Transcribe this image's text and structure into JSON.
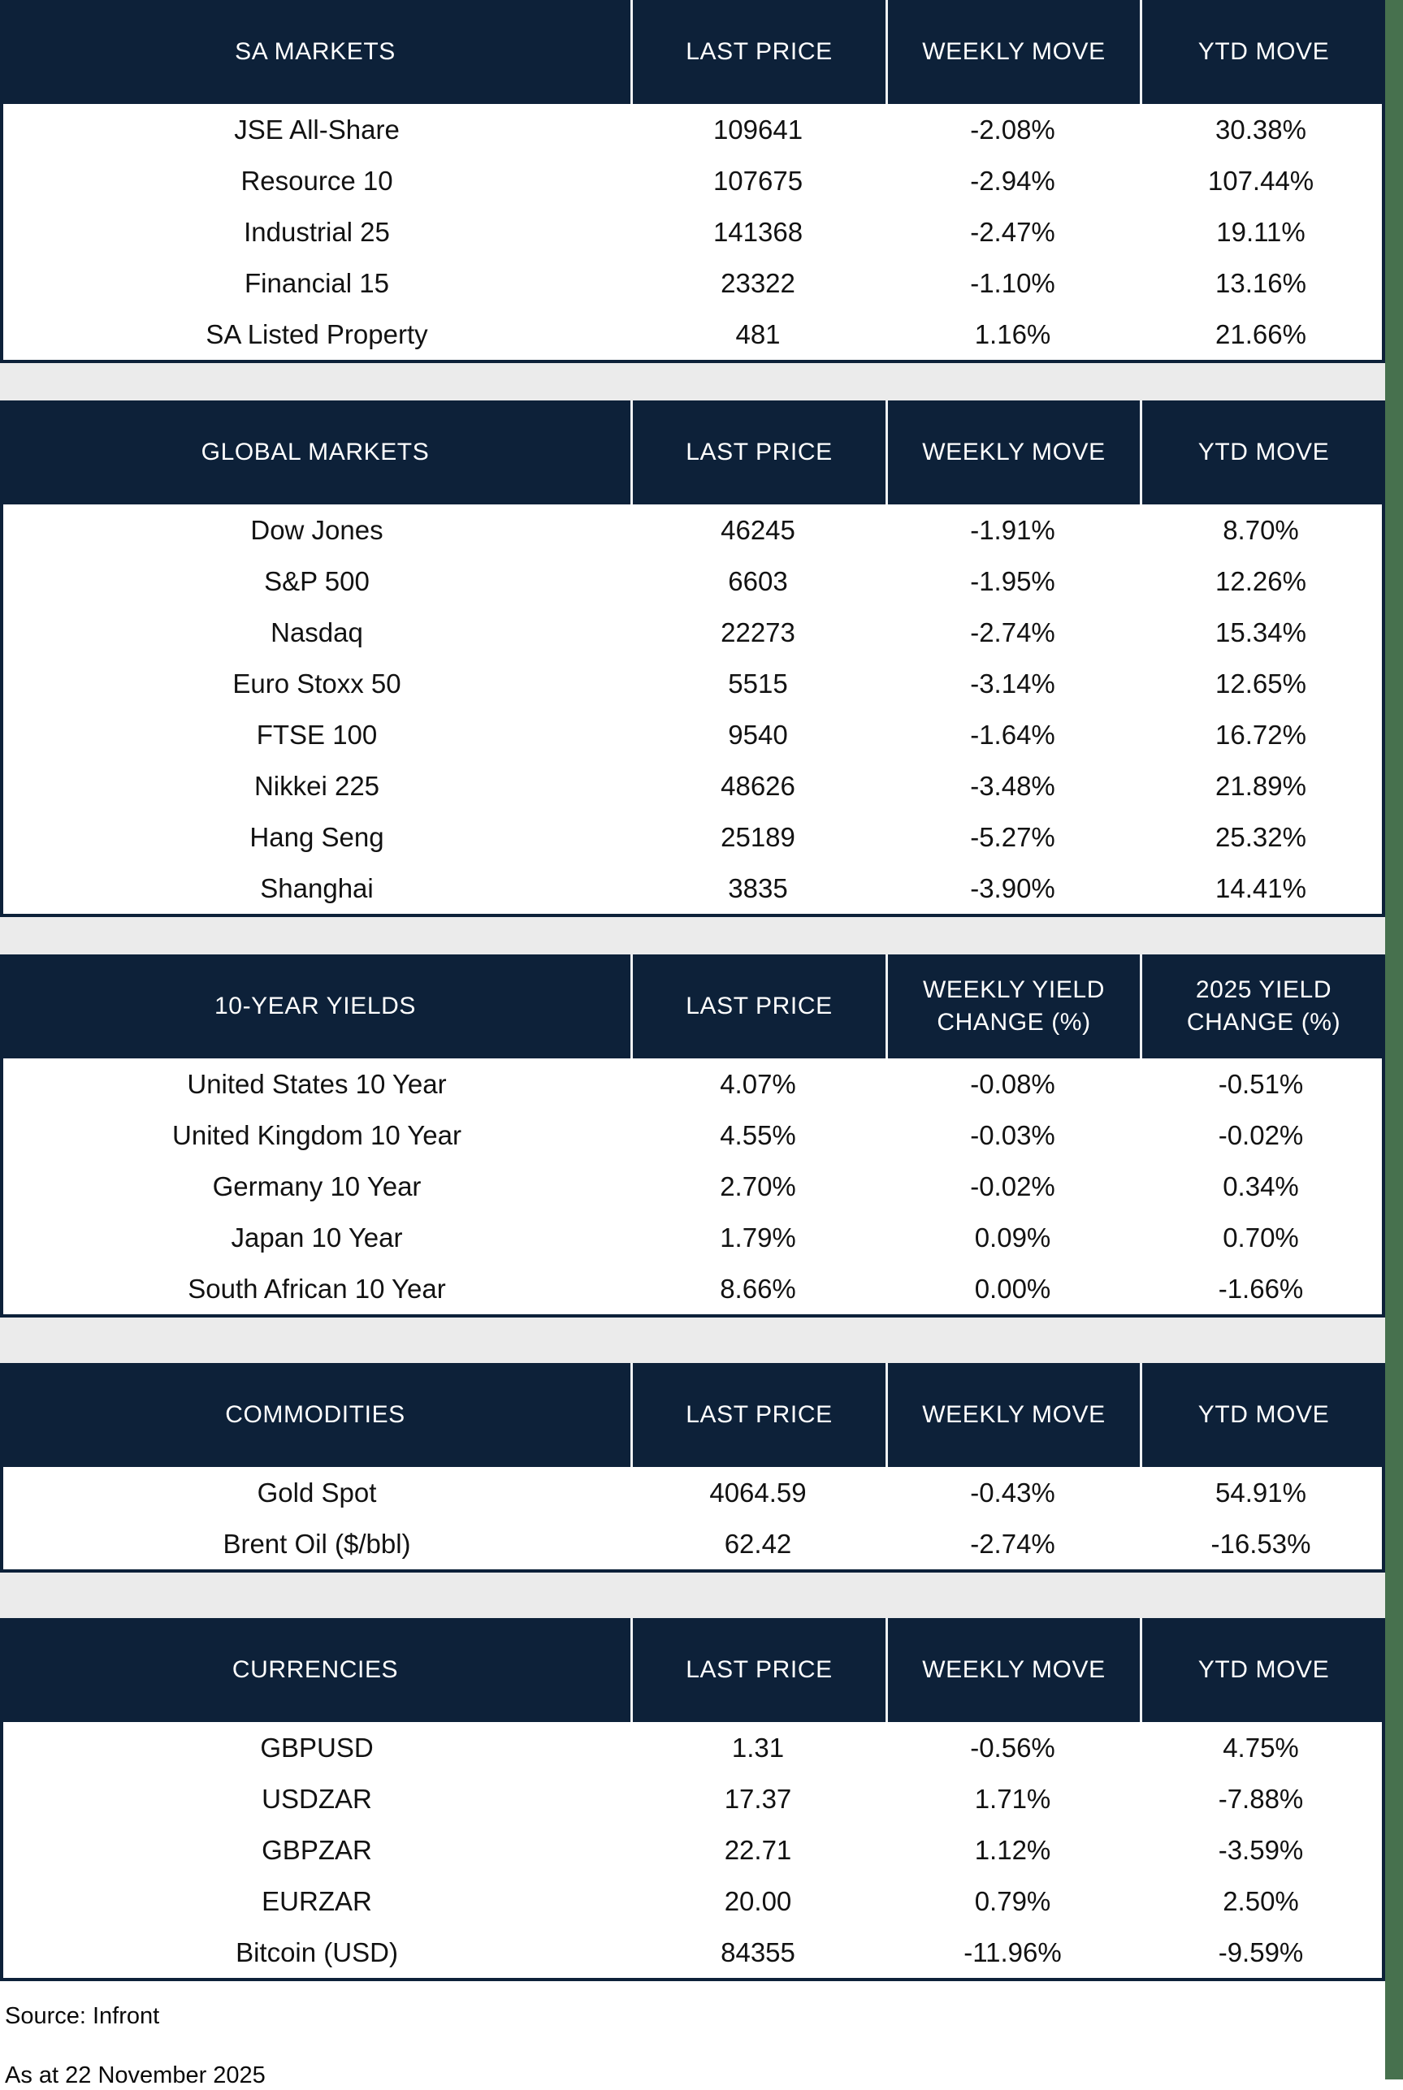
{
  "colors": {
    "navy": "#0d2139",
    "green": "#47714e",
    "gap_gray": "#ebebeb",
    "header_divider": "#eef1f4",
    "body_text": "#121212",
    "header_text": "#ffffff"
  },
  "tables": [
    {
      "title": "SA MARKETS",
      "columns": [
        "LAST PRICE",
        "WEEKLY MOVE",
        "YTD MOVE"
      ],
      "rows": [
        [
          "JSE All-Share",
          "109641",
          "-2.08%",
          "30.38%"
        ],
        [
          "Resource 10",
          "107675",
          "-2.94%",
          "107.44%"
        ],
        [
          "Industrial 25",
          "141368",
          "-2.47%",
          "19.11%"
        ],
        [
          "Financial 15",
          "23322",
          "-1.10%",
          "13.16%"
        ],
        [
          "SA Listed Property",
          "481",
          "1.16%",
          "21.66%"
        ]
      ]
    },
    {
      "title": "GLOBAL MARKETS",
      "columns": [
        "LAST PRICE",
        "WEEKLY MOVE",
        "YTD MOVE"
      ],
      "rows": [
        [
          "Dow Jones",
          "46245",
          "-1.91%",
          "8.70%"
        ],
        [
          "S&P 500",
          "6603",
          "-1.95%",
          "12.26%"
        ],
        [
          "Nasdaq",
          "22273",
          "-2.74%",
          "15.34%"
        ],
        [
          "Euro Stoxx 50",
          "5515",
          "-3.14%",
          "12.65%"
        ],
        [
          "FTSE 100",
          "9540",
          "-1.64%",
          "16.72%"
        ],
        [
          "Nikkei 225",
          "48626",
          "-3.48%",
          "21.89%"
        ],
        [
          "Hang Seng",
          "25189",
          "-5.27%",
          "25.32%"
        ],
        [
          "Shanghai",
          "3835",
          "-3.90%",
          "14.41%"
        ]
      ]
    },
    {
      "title": "10-YEAR YIELDS",
      "columns": [
        "LAST PRICE",
        "WEEKLY YIELD\nCHANGE (%)",
        "2025 YIELD\nCHANGE (%)"
      ],
      "rows": [
        [
          "United States 10 Year",
          "4.07%",
          "-0.08%",
          "-0.51%"
        ],
        [
          "United Kingdom 10 Year",
          "4.55%",
          "-0.03%",
          "-0.02%"
        ],
        [
          "Germany 10 Year",
          "2.70%",
          "-0.02%",
          "0.34%"
        ],
        [
          "Japan 10 Year",
          "1.79%",
          "0.09%",
          "0.70%"
        ],
        [
          "South African 10 Year",
          "8.66%",
          "0.00%",
          "-1.66%"
        ]
      ]
    },
    {
      "title": "COMMODITIES",
      "columns": [
        "LAST PRICE",
        "WEEKLY MOVE",
        "YTD MOVE"
      ],
      "rows": [
        [
          "Gold Spot",
          "4064.59",
          "-0.43%",
          "54.91%"
        ],
        [
          "Brent Oil ($/bbl)",
          "62.42",
          "-2.74%",
          "-16.53%"
        ]
      ]
    },
    {
      "title": "CURRENCIES",
      "columns": [
        "LAST PRICE",
        "WEEKLY MOVE",
        "YTD MOVE"
      ],
      "rows": [
        [
          "GBPUSD",
          "1.31",
          "-0.56%",
          "4.75%"
        ],
        [
          "USDZAR",
          "17.37",
          "1.71%",
          "-7.88%"
        ],
        [
          "GBPZAR",
          "22.71",
          "1.12%",
          "-3.59%"
        ],
        [
          "EURZAR",
          "20.00",
          "0.79%",
          "2.50%"
        ],
        [
          "Bitcoin (USD)",
          "84355",
          "-11.96%",
          "-9.59%"
        ]
      ]
    }
  ],
  "footer": {
    "source": "Source: Infront",
    "as_at": "As at 22 November 2025"
  }
}
